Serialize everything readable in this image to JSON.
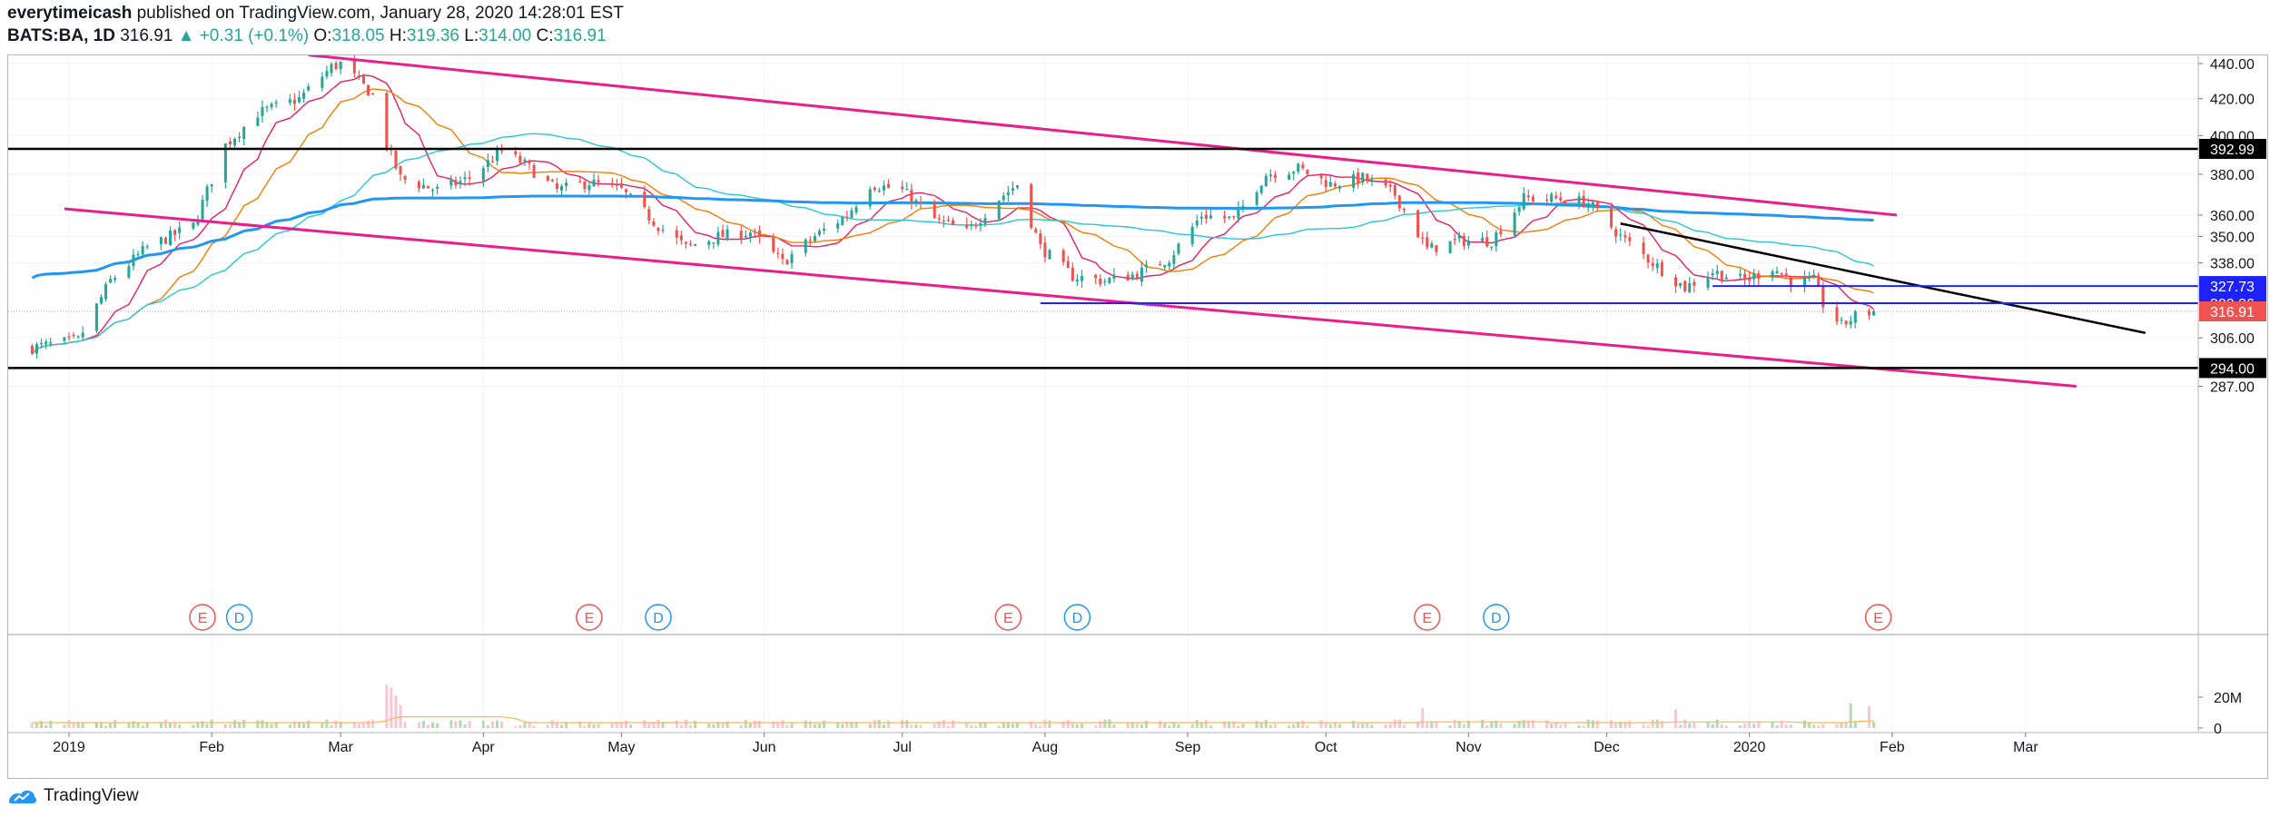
{
  "header": {
    "author": "everytimeicash",
    "published_text": "published on TradingView.com, January 28, 2020 14:28:01 EST",
    "symbol": "BATS:BA, 1D",
    "last": "316.91",
    "change": "▲ +0.31 (+0.1%)",
    "o_label": "O:",
    "o_value": "318.05",
    "h_label": "H:",
    "h_value": "319.36",
    "l_label": "L:",
    "l_value": "314.00",
    "c_label": "C:",
    "c_value": "316.91"
  },
  "footer": {
    "brand": "TradingView"
  },
  "colors": {
    "up": "#26a69a",
    "down": "#ef5350",
    "channel": "#e91e8c",
    "ma_blue": "#2196f3",
    "ma_cyan": "#26c6da",
    "ma_orange": "#f57c00",
    "ma_pink": "#e91e63",
    "level_line": "#000000",
    "blue_line": "#1e22ff",
    "last_price": "#ef5350"
  },
  "chart_data": {
    "type": "candlestick",
    "symbol": "BATS:BA",
    "interval": "1D",
    "y_scale": "log",
    "price_axis": {
      "ticks": [
        440.0,
        420.0,
        400.0,
        380.0,
        360.0,
        350.0,
        338.0,
        306.0,
        287.0
      ],
      "tick_labels": [
        "440.00",
        "420.00",
        "400.00",
        "380.00",
        "360.00",
        "350.00",
        "338.00",
        "306.00",
        "287.00"
      ]
    },
    "price_labels": [
      {
        "value": 392.99,
        "label": "392.99",
        "style": "black"
      },
      {
        "value": 327.73,
        "label": "327.73",
        "style": "blue"
      },
      {
        "value": 320.36,
        "label": "320.36",
        "style": "blue"
      },
      {
        "value": 316.91,
        "label": "316.91",
        "style": "last"
      },
      {
        "value": 294.0,
        "label": "294.00",
        "style": "black"
      }
    ],
    "time_axis": {
      "labels": [
        "2019",
        "Feb",
        "Mar",
        "Apr",
        "May",
        "Jun",
        "Jul",
        "Aug",
        "Sep",
        "Oct",
        "Nov",
        "Dec",
        "2020",
        "Feb",
        "Mar"
      ],
      "dates": [
        "2019-01-01",
        "2019-02-01",
        "2019-03-01",
        "2019-04-01",
        "2019-05-01",
        "2019-06-01",
        "2019-07-01",
        "2019-08-01",
        "2019-09-01",
        "2019-10-01",
        "2019-11-01",
        "2019-12-01",
        "2020-01-01",
        "2020-02-01",
        "2020-03-01"
      ]
    },
    "anchors": [
      [
        "2018-12-24",
        302
      ],
      [
        "2019-01-03",
        305
      ],
      [
        "2019-01-10",
        330
      ],
      [
        "2019-01-18",
        345
      ],
      [
        "2019-01-28",
        355
      ],
      [
        "2019-02-04",
        395
      ],
      [
        "2019-02-11",
        412
      ],
      [
        "2019-02-20",
        420
      ],
      [
        "2019-02-27",
        438
      ],
      [
        "2019-03-01",
        440
      ],
      [
        "2019-03-08",
        422
      ],
      [
        "2019-03-11",
        395
      ],
      [
        "2019-03-14",
        378
      ],
      [
        "2019-03-22",
        372
      ],
      [
        "2019-03-29",
        378
      ],
      [
        "2019-04-05",
        392
      ],
      [
        "2019-04-10",
        385
      ],
      [
        "2019-04-17",
        372
      ],
      [
        "2019-04-24",
        376
      ],
      [
        "2019-05-01",
        372
      ],
      [
        "2019-05-09",
        355
      ],
      [
        "2019-05-15",
        345
      ],
      [
        "2019-05-22",
        350
      ],
      [
        "2019-05-29",
        352
      ],
      [
        "2019-06-05",
        338
      ],
      [
        "2019-06-12",
        350
      ],
      [
        "2019-06-19",
        360
      ],
      [
        "2019-06-24",
        375
      ],
      [
        "2019-07-01",
        372
      ],
      [
        "2019-07-08",
        358
      ],
      [
        "2019-07-15",
        352
      ],
      [
        "2019-07-22",
        368
      ],
      [
        "2019-07-26",
        375
      ],
      [
        "2019-07-31",
        345
      ],
      [
        "2019-08-07",
        332
      ],
      [
        "2019-08-14",
        330
      ],
      [
        "2019-08-21",
        333
      ],
      [
        "2019-08-28",
        340
      ],
      [
        "2019-09-04",
        360
      ],
      [
        "2019-09-11",
        358
      ],
      [
        "2019-09-18",
        380
      ],
      [
        "2019-09-25",
        383
      ],
      [
        "2019-10-02",
        375
      ],
      [
        "2019-10-09",
        378
      ],
      [
        "2019-10-16",
        370
      ],
      [
        "2019-10-23",
        344
      ],
      [
        "2019-10-30",
        348
      ],
      [
        "2019-11-06",
        348
      ],
      [
        "2019-11-13",
        368
      ],
      [
        "2019-11-20",
        368
      ],
      [
        "2019-11-27",
        366
      ],
      [
        "2019-12-04",
        350
      ],
      [
        "2019-12-11",
        338
      ],
      [
        "2019-12-18",
        327
      ],
      [
        "2019-12-24",
        334
      ],
      [
        "2019-12-31",
        330
      ],
      [
        "2020-01-06",
        336
      ],
      [
        "2020-01-10",
        330
      ],
      [
        "2020-01-15",
        330
      ],
      [
        "2020-01-17",
        320
      ],
      [
        "2020-01-21",
        311
      ],
      [
        "2020-01-24",
        315
      ],
      [
        "2020-01-28",
        316.91
      ]
    ],
    "moving_averages": [
      {
        "color": "#e91e63",
        "period": 10
      },
      {
        "color": "#f57c00",
        "period": 20
      },
      {
        "color": "#26c6da",
        "period": 50
      },
      {
        "color": "#2196f3",
        "period": 200
      }
    ],
    "drawings": {
      "channel_upper": [
        [
          "2019-02-22",
          445
        ],
        [
          "2020-02-02",
          360
        ]
      ],
      "channel_lower": [
        [
          "2018-12-31",
          363
        ],
        [
          "2020-03-12",
          287
        ]
      ],
      "trendline_black": [
        [
          "2019-12-04",
          356
        ],
        [
          "2020-03-27",
          308
        ]
      ],
      "horizontal_black": [
        392.99,
        294.0
      ],
      "horizontal_blue_full": 320.36,
      "horizontal_blue_start": "2019-07-31",
      "horizontal_blue_short": {
        "value": 327.73,
        "start": "2019-12-24"
      }
    },
    "events": [
      {
        "type": "E",
        "date": "2019-01-30"
      },
      {
        "type": "D",
        "date": "2019-02-07"
      },
      {
        "type": "E",
        "date": "2019-04-24"
      },
      {
        "type": "D",
        "date": "2019-05-09"
      },
      {
        "type": "E",
        "date": "2019-07-24"
      },
      {
        "type": "D",
        "date": "2019-08-08"
      },
      {
        "type": "E",
        "date": "2019-10-23"
      },
      {
        "type": "D",
        "date": "2019-11-07"
      },
      {
        "type": "E",
        "date": "2020-01-29"
      }
    ],
    "volume": {
      "axis_labels": [
        "20M",
        "0"
      ],
      "axis_values": [
        20000000,
        0
      ],
      "typical_millions": 3.5,
      "spikes": [
        {
          "date": "2019-03-11",
          "millions": 28
        },
        {
          "date": "2019-03-12",
          "millions": 26
        },
        {
          "date": "2019-03-13",
          "millions": 21
        },
        {
          "date": "2019-03-14",
          "millions": 15
        },
        {
          "date": "2019-10-22",
          "millions": 13
        },
        {
          "date": "2019-12-16",
          "millions": 12
        },
        {
          "date": "2020-01-23",
          "millions": 16
        },
        {
          "date": "2020-01-27",
          "millions": 14
        }
      ]
    }
  }
}
